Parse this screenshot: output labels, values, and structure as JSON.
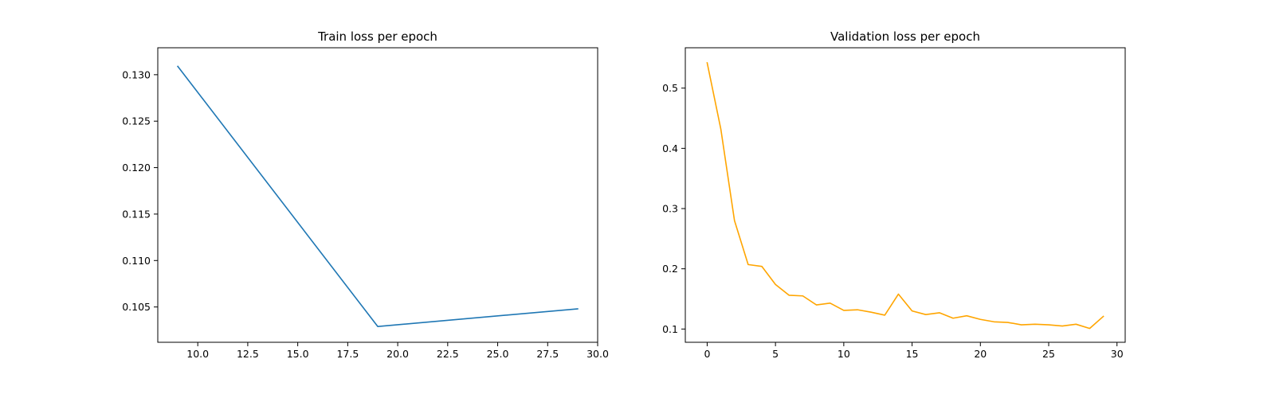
{
  "chart_data": [
    {
      "type": "line",
      "title": "Train loss per epoch",
      "xlabel": "",
      "ylabel": "",
      "xlim": [
        8.0,
        30.0
      ],
      "ylim": [
        0.1012,
        0.1329
      ],
      "xticks": [
        10.0,
        12.5,
        15.0,
        17.5,
        20.0,
        22.5,
        25.0,
        27.5,
        30.0
      ],
      "xtick_labels": [
        "10.0",
        "12.5",
        "15.0",
        "17.5",
        "20.0",
        "22.5",
        "25.0",
        "27.5",
        "30.0"
      ],
      "yticks": [
        0.105,
        0.11,
        0.115,
        0.12,
        0.125,
        0.13
      ],
      "ytick_labels": [
        "0.105",
        "0.110",
        "0.115",
        "0.120",
        "0.125",
        "0.130"
      ],
      "grid": false,
      "series": [
        {
          "color": "#1f77b4",
          "x": [
            9,
            19,
            29
          ],
          "y": [
            0.1309,
            0.1029,
            0.1048
          ]
        }
      ]
    },
    {
      "type": "line",
      "title": "Validation loss per epoch",
      "xlabel": "",
      "ylabel": "",
      "xlim": [
        -1.6,
        30.6
      ],
      "ylim": [
        0.078,
        0.567
      ],
      "xticks": [
        0,
        5,
        10,
        15,
        20,
        25,
        30
      ],
      "xtick_labels": [
        "0",
        "5",
        "10",
        "15",
        "20",
        "25",
        "30"
      ],
      "yticks": [
        0.1,
        0.2,
        0.3,
        0.4,
        0.5
      ],
      "ytick_labels": [
        "0.1",
        "0.2",
        "0.3",
        "0.4",
        "0.5"
      ],
      "grid": false,
      "series": [
        {
          "color": "#ffa500",
          "x": [
            0,
            1,
            2,
            3,
            4,
            5,
            6,
            7,
            8,
            9,
            10,
            11,
            12,
            13,
            14,
            15,
            16,
            17,
            18,
            19,
            20,
            21,
            22,
            23,
            24,
            25,
            26,
            27,
            28,
            29
          ],
          "y": [
            0.542,
            0.432,
            0.28,
            0.207,
            0.204,
            0.174,
            0.156,
            0.155,
            0.14,
            0.143,
            0.131,
            0.132,
            0.128,
            0.123,
            0.158,
            0.13,
            0.124,
            0.127,
            0.118,
            0.122,
            0.116,
            0.112,
            0.111,
            0.107,
            0.108,
            0.107,
            0.105,
            0.108,
            0.101,
            0.121
          ]
        }
      ]
    }
  ]
}
